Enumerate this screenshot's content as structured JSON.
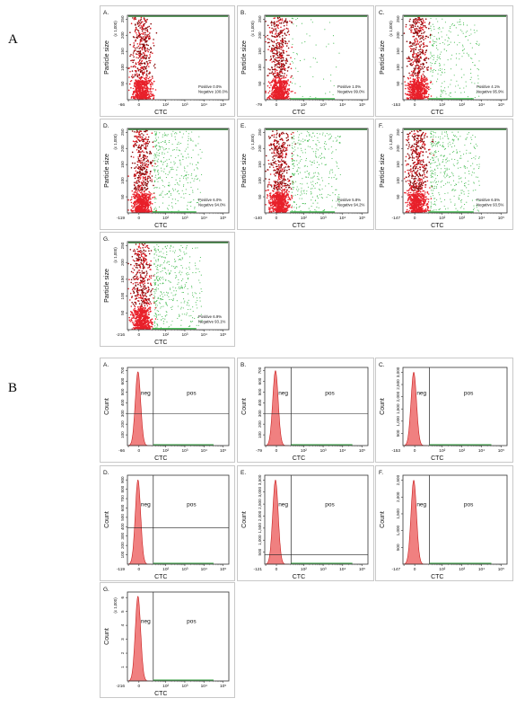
{
  "section_labels": {
    "a": "A",
    "b": "B"
  },
  "chart_data": [
    {
      "id": "A.A",
      "group": "A",
      "type": "scatter",
      "panel_letter": "A.",
      "xlabel": "CTC",
      "ylabel": "Particle size",
      "y_multiplier": "(x 1,000)",
      "y_ticks": [
        "50",
        "100",
        "150",
        "200",
        "250"
      ],
      "x_ticks": [
        "-66",
        "0",
        "10²",
        "10³",
        "10⁴",
        "10⁵"
      ],
      "y_range": [
        0,
        262
      ],
      "x_log_range": [
        0,
        5.3
      ],
      "positive_pct": 0.0,
      "negative_pct": 100.0,
      "stats": [
        "Positive 0.0%",
        "Negative 100.0%"
      ],
      "colors": {
        "negative": "#e8202a",
        "dense": "#8b0b0b",
        "positive": "#3cb84a",
        "top": "#2e7d32"
      }
    },
    {
      "id": "A.B",
      "group": "A",
      "type": "scatter",
      "panel_letter": "B.",
      "xlabel": "CTC",
      "ylabel": "Particle size",
      "y_multiplier": "(x 1,000)",
      "y_ticks": [
        "50",
        "100",
        "150",
        "200",
        "250"
      ],
      "x_ticks": [
        "-79",
        "0",
        "10²",
        "10³",
        "10⁴",
        "10⁵"
      ],
      "y_range": [
        0,
        262
      ],
      "x_log_range": [
        0,
        5.3
      ],
      "positive_pct": 1.0,
      "negative_pct": 99.0,
      "stats": [
        "Positive 1.0%",
        "Negative 99.0%"
      ],
      "colors": {
        "negative": "#e8202a",
        "dense": "#8b0b0b",
        "positive": "#3cb84a",
        "top": "#2e7d32"
      }
    },
    {
      "id": "A.C",
      "group": "A",
      "type": "scatter",
      "panel_letter": "C.",
      "xlabel": "CTC",
      "ylabel": "Particle size",
      "y_multiplier": "(x 1,000)",
      "y_ticks": [
        "50",
        "100",
        "150",
        "200",
        "250"
      ],
      "x_ticks": [
        "-153",
        "0",
        "10²",
        "10³",
        "10⁴",
        "10⁵"
      ],
      "y_range": [
        0,
        262
      ],
      "x_log_range": [
        0,
        5.3
      ],
      "positive_pct": 4.1,
      "negative_pct": 95.9,
      "stats": [
        "Positive 4.1%",
        "Negative 95.9%"
      ],
      "colors": {
        "negative": "#e8202a",
        "dense": "#8b0b0b",
        "positive": "#3cb84a",
        "top": "#2e7d32"
      }
    },
    {
      "id": "A.D",
      "group": "A",
      "type": "scatter",
      "panel_letter": "D.",
      "xlabel": "CTC",
      "ylabel": "Particle size",
      "y_multiplier": "(x 1,000)",
      "y_ticks": [
        "50",
        "100",
        "150",
        "200",
        "250"
      ],
      "x_ticks": [
        "-119",
        "0",
        "10²",
        "10³",
        "10⁴",
        "10⁵"
      ],
      "y_range": [
        0,
        262
      ],
      "x_log_range": [
        0,
        5.3
      ],
      "positive_pct": 6.0,
      "negative_pct": 94.0,
      "stats": [
        "Positive 6.0%",
        "Negative 94.0%"
      ],
      "colors": {
        "negative": "#e8202a",
        "dense": "#8b0b0b",
        "positive": "#3cb84a",
        "top": "#2e7d32"
      }
    },
    {
      "id": "A.E",
      "group": "A",
      "type": "scatter",
      "panel_letter": "E.",
      "xlabel": "CTC",
      "ylabel": "Particle size",
      "y_multiplier": "(x 1,000)",
      "y_ticks": [
        "50",
        "100",
        "150",
        "200",
        "250"
      ],
      "x_ticks": [
        "-140",
        "0",
        "10²",
        "10³",
        "10⁴",
        "10⁵"
      ],
      "y_range": [
        0,
        262
      ],
      "x_log_range": [
        0,
        5.3
      ],
      "positive_pct": 5.8,
      "negative_pct": 94.2,
      "stats": [
        "Positive 5.8%",
        "Negative 94.2%"
      ],
      "colors": {
        "negative": "#e8202a",
        "dense": "#8b0b0b",
        "positive": "#3cb84a",
        "top": "#2e7d32"
      }
    },
    {
      "id": "A.F",
      "group": "A",
      "type": "scatter",
      "panel_letter": "F.",
      "xlabel": "CTC",
      "ylabel": "Particle size",
      "y_multiplier": "(x 1,000)",
      "y_ticks": [
        "50",
        "100",
        "150",
        "200",
        "250"
      ],
      "x_ticks": [
        "-147",
        "0",
        "10²",
        "10³",
        "10⁴",
        "10⁵"
      ],
      "y_range": [
        0,
        262
      ],
      "x_log_range": [
        0,
        5.3
      ],
      "positive_pct": 6.5,
      "negative_pct": 93.5,
      "stats": [
        "Positive 6.5%",
        "Negative 93.5%"
      ],
      "colors": {
        "negative": "#e8202a",
        "dense": "#8b0b0b",
        "positive": "#3cb84a",
        "top": "#2e7d32"
      }
    },
    {
      "id": "A.G",
      "group": "A",
      "type": "scatter",
      "panel_letter": "G.",
      "xlabel": "CTC",
      "ylabel": "Particle size",
      "y_multiplier": "(x 1,000)",
      "y_ticks": [
        "50",
        "100",
        "150",
        "200",
        "250"
      ],
      "x_ticks": [
        "-216",
        "0",
        "10²",
        "10³",
        "10⁴",
        "10⁵"
      ],
      "y_range": [
        0,
        262
      ],
      "x_log_range": [
        0,
        5.3
      ],
      "positive_pct": 6.9,
      "negative_pct": 93.1,
      "stats": [
        "Positive 6.9%",
        "Negative 93.1%"
      ],
      "colors": {
        "negative": "#e8202a",
        "dense": "#8b0b0b",
        "positive": "#3cb84a",
        "top": "#2e7d32"
      }
    },
    {
      "id": "B.A",
      "group": "B",
      "type": "area",
      "panel_letter": "A.",
      "xlabel": "CTC",
      "ylabel": "Count",
      "y_multiplier": "",
      "y_ticks": [
        "100",
        "200",
        "300",
        "400",
        "500",
        "600",
        "700"
      ],
      "x_ticks": [
        "-66",
        "0",
        "10²",
        "10³",
        "10⁴",
        "10⁵"
      ],
      "y_range": [
        0,
        730
      ],
      "x_log_range": [
        0,
        5.3
      ],
      "peak": 690,
      "gate_labels": {
        "neg": "neg",
        "pos": "pos"
      },
      "gate_level": 300,
      "colors": {
        "fill": "#f08080",
        "stroke": "#c81e1e",
        "axis_green": "#2e9d3a"
      }
    },
    {
      "id": "B.B",
      "group": "B",
      "type": "area",
      "panel_letter": "B.",
      "xlabel": "CTC",
      "ylabel": "Count",
      "y_multiplier": "",
      "y_ticks": [
        "100",
        "200",
        "300",
        "400",
        "500",
        "600",
        "700"
      ],
      "x_ticks": [
        "-79",
        "0",
        "10²",
        "10³",
        "10⁴",
        "10⁵"
      ],
      "y_range": [
        0,
        730
      ],
      "x_log_range": [
        0,
        5.3
      ],
      "peak": 700,
      "gate_labels": {
        "neg": "neg",
        "pos": "pos"
      },
      "gate_level": 300,
      "colors": {
        "fill": "#f08080",
        "stroke": "#c81e1e",
        "axis_green": "#2e9d3a"
      }
    },
    {
      "id": "B.C",
      "group": "B",
      "type": "area",
      "panel_letter": "C.",
      "xlabel": "CTC",
      "ylabel": "Count",
      "y_multiplier": "",
      "y_ticks": [
        "500",
        "1,000",
        "1,500",
        "2,000",
        "2,500",
        "3,000"
      ],
      "x_ticks": [
        "-153",
        "0",
        "10²",
        "10³",
        "10⁴",
        "10⁵"
      ],
      "y_range": [
        0,
        3200
      ],
      "x_log_range": [
        0,
        5.3
      ],
      "peak": 3000,
      "gate_labels": {
        "neg": "neg",
        "pos": "pos"
      },
      "colors": {
        "fill": "#f08080",
        "stroke": "#c81e1e",
        "axis_green": "#2e9d3a"
      }
    },
    {
      "id": "B.D",
      "group": "B",
      "type": "area",
      "panel_letter": "D.",
      "xlabel": "CTC",
      "ylabel": "Count",
      "y_multiplier": "",
      "y_ticks": [
        "100",
        "200",
        "300",
        "400",
        "500",
        "600",
        "700",
        "800",
        "900"
      ],
      "x_ticks": [
        "-119",
        "0",
        "10²",
        "10³",
        "10⁴",
        "10⁵"
      ],
      "y_range": [
        0,
        950
      ],
      "x_log_range": [
        0,
        5.3
      ],
      "peak": 900,
      "gate_labels": {
        "neg": "neg",
        "pos": "pos"
      },
      "gate_level": 390,
      "colors": {
        "fill": "#f08080",
        "stroke": "#c81e1e",
        "axis_green": "#2e9d3a"
      }
    },
    {
      "id": "B.E",
      "group": "B",
      "type": "area",
      "panel_letter": "E.",
      "xlabel": "CTC",
      "ylabel": "Count",
      "y_multiplier": "",
      "y_ticks": [
        "500",
        "1,000",
        "1,500",
        "2,000",
        "2,500",
        "3,000",
        "3,500"
      ],
      "x_ticks": [
        "-121",
        "0",
        "10²",
        "10³",
        "10⁴",
        "10⁵"
      ],
      "y_range": [
        0,
        3700
      ],
      "x_log_range": [
        0,
        5.3
      ],
      "peak": 3500,
      "gate_labels": {
        "neg": "neg",
        "pos": "pos"
      },
      "gate_level": 400,
      "colors": {
        "fill": "#f08080",
        "stroke": "#c81e1e",
        "axis_green": "#2e9d3a"
      }
    },
    {
      "id": "B.F",
      "group": "B",
      "type": "area",
      "panel_letter": "F.",
      "xlabel": "CTC",
      "ylabel": "Count",
      "y_multiplier": "",
      "y_ticks": [
        "500",
        "1,000",
        "1,500",
        "2,000",
        "2,500"
      ],
      "x_ticks": [
        "-147",
        "0",
        "10²",
        "10³",
        "10⁴",
        "10⁵"
      ],
      "y_range": [
        0,
        2650
      ],
      "x_log_range": [
        0,
        5.3
      ],
      "peak": 2500,
      "gate_labels": {
        "neg": "neg",
        "pos": "pos"
      },
      "colors": {
        "fill": "#f08080",
        "stroke": "#c81e1e",
        "axis_green": "#2e9d3a"
      }
    },
    {
      "id": "B.G",
      "group": "B",
      "type": "area",
      "panel_letter": "G.",
      "xlabel": "CTC",
      "ylabel": "Count",
      "y_multiplier": "(x 1,000)",
      "y_ticks": [
        "1",
        "2",
        "3",
        "4",
        "5",
        "6"
      ],
      "x_ticks": [
        "-216",
        "0",
        "10²",
        "10³",
        "10⁴",
        "10⁵"
      ],
      "y_range": [
        0,
        6.4
      ],
      "x_log_range": [
        0,
        5.3
      ],
      "peak": 6.1,
      "gate_labels": {
        "neg": "neg",
        "pos": "pos"
      },
      "colors": {
        "fill": "#f08080",
        "stroke": "#c81e1e",
        "axis_green": "#2e9d3a"
      }
    }
  ]
}
